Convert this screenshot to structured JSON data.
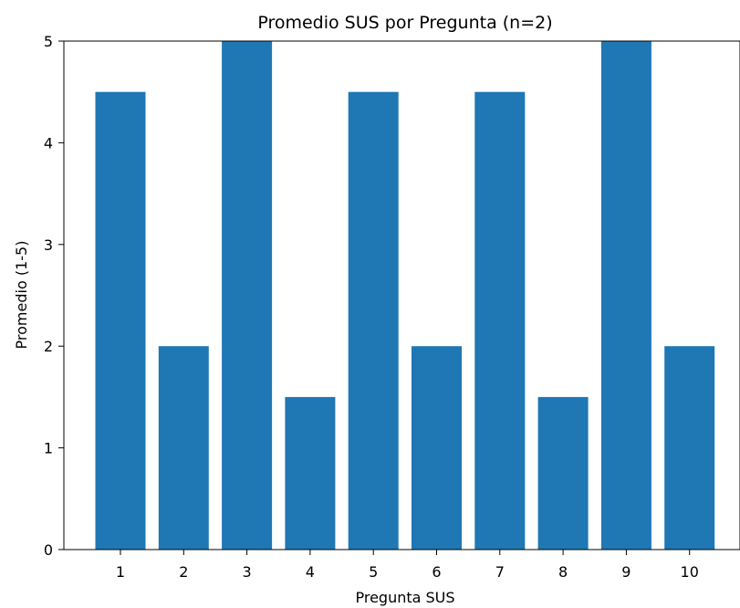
{
  "chart_data": {
    "type": "bar",
    "title": "Promedio SUS por Pregunta (n=2)",
    "xlabel": "Pregunta SUS",
    "ylabel": "Promedio (1-5)",
    "categories": [
      "1",
      "2",
      "3",
      "4",
      "5",
      "6",
      "7",
      "8",
      "9",
      "10"
    ],
    "values": [
      4.5,
      2,
      5,
      1.5,
      4.5,
      2,
      4.5,
      1.5,
      5,
      2
    ],
    "ylim": [
      0,
      5
    ],
    "yticks": [
      "0",
      "1",
      "2",
      "3",
      "4",
      "5"
    ],
    "bar_color": "#1f77b4",
    "grid": false,
    "legend": "none"
  }
}
